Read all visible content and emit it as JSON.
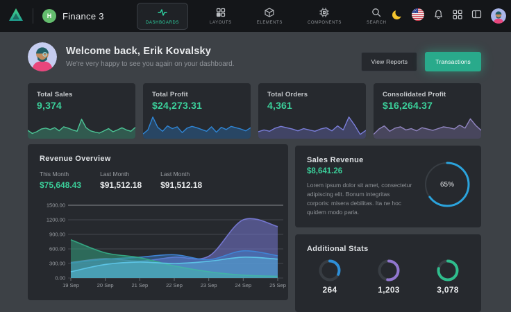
{
  "navbar": {
    "brand": "Finance 3",
    "brand_badge": "H",
    "items": [
      {
        "label": "DASHBOARDS",
        "icon": "activity-icon",
        "active": true
      },
      {
        "label": "LAYOUTS",
        "icon": "layout-grid-icon",
        "active": false
      },
      {
        "label": "ELEMENTS",
        "icon": "box-icon",
        "active": false
      },
      {
        "label": "COMPONENTS",
        "icon": "cpu-icon",
        "active": false
      },
      {
        "label": "SEARCH",
        "icon": "search-icon",
        "active": false
      }
    ],
    "right_icons": [
      "moon-icon",
      "us-flag-icon",
      "bell-icon",
      "apps-grid-icon",
      "sidebar-toggle-icon",
      "user-avatar"
    ]
  },
  "welcome": {
    "title": "Welcome back, Erik Kovalsky",
    "subtitle": "We're very happy to see you again on your dashboard.",
    "view_reports_label": "View Reports",
    "transactions_label": "Transactions"
  },
  "accent_colors": {
    "green": "#3bcf9a",
    "teal_button": "#29aa8b"
  },
  "stat_cards": [
    {
      "title": "Total Sales",
      "value": "9,374",
      "spark": {
        "color": "#4cc596",
        "values": [
          28,
          14,
          22,
          34,
          38,
          32,
          40,
          26,
          44,
          38,
          30,
          24,
          78,
          40,
          26,
          20,
          16,
          26,
          36,
          22,
          30,
          40,
          30,
          24,
          42
        ]
      }
    },
    {
      "title": "Total Profit",
      "value": "$24,273.31",
      "spark": {
        "color": "#2f86d6",
        "values": [
          12,
          30,
          88,
          42,
          24,
          48,
          36,
          44,
          18,
          38,
          46,
          40,
          32,
          24,
          44,
          20,
          42,
          32,
          46,
          40,
          34,
          26,
          40
        ]
      }
    },
    {
      "title": "Total Orders",
      "value": "4,361",
      "spark": {
        "color": "#7b7fdb",
        "values": [
          22,
          30,
          24,
          38,
          46,
          40,
          34,
          26,
          36,
          30,
          24,
          34,
          40,
          26,
          48,
          30,
          88,
          52,
          10,
          28
        ]
      }
    },
    {
      "title": "Consolidated Profit",
      "value": "$16,264.37",
      "spark": {
        "color": "#9286c2",
        "values": [
          10,
          34,
          48,
          24,
          38,
          44,
          30,
          36,
          26,
          40,
          34,
          28,
          36,
          44,
          40,
          34,
          52,
          38,
          80,
          50,
          28
        ]
      }
    }
  ],
  "revenue_overview": {
    "title": "Revenue Overview",
    "stats": [
      {
        "label": "This Month",
        "value": "$75,648.43",
        "highlight": true
      },
      {
        "label": "Last Month",
        "value": "$91,512.18",
        "highlight": false
      },
      {
        "label": "Last Month",
        "value": "$91,512.18",
        "highlight": false
      }
    ],
    "chart_data": {
      "type": "area",
      "x": [
        "19 Sep",
        "20 Sep",
        "21 Sep",
        "22 Sep",
        "23 Sep",
        "24 Sep",
        "25 Sep"
      ],
      "ylim": [
        0,
        1500
      ],
      "y_ticks": [
        "1500.00",
        "1200.00",
        "900.00",
        "600.00",
        "300.00",
        "0.00"
      ],
      "grid": true,
      "series": [
        {
          "name": "series-purple",
          "color": "#7678d4",
          "fill_opacity": 0.55,
          "values": [
            320,
            400,
            350,
            430,
            450,
            1200,
            1060
          ]
        },
        {
          "name": "series-blue",
          "color": "#3f86d8",
          "fill_opacity": 0.45,
          "values": [
            310,
            385,
            430,
            480,
            380,
            560,
            460
          ]
        },
        {
          "name": "series-green",
          "color": "#34ab85",
          "fill_opacity": 0.5,
          "values": [
            790,
            520,
            420,
            250,
            130,
            60,
            35
          ]
        },
        {
          "name": "series-cyan",
          "color": "#5ec6e8",
          "fill_opacity": 0.35,
          "values": [
            130,
            280,
            330,
            300,
            345,
            430,
            390
          ]
        }
      ]
    }
  },
  "sales_revenue": {
    "title": "Sales Revenue",
    "value": "$8,641.26",
    "description": "Lorem ipsum dolor sit amet, consectetur adipiscing elit. Bonum integritas corporis: misera debilitas. Ita ne hoc quidem modo paria.",
    "donut": {
      "percent": 65,
      "label": "65%",
      "color": "#2ba3dc",
      "width": 3,
      "track": 2
    }
  },
  "additional_stats": {
    "title": "Additional Stats",
    "items": [
      {
        "value": "264",
        "donut": {
          "percent": 32,
          "color": "#2e8fd8",
          "width": 4,
          "track": 4
        }
      },
      {
        "value": "1,203",
        "donut": {
          "percent": 52,
          "color": "#9177cf",
          "width": 4,
          "track": 4
        }
      },
      {
        "value": "3,078",
        "donut": {
          "percent": 78,
          "color": "#2fbd8d",
          "width": 4,
          "track": 4
        }
      }
    ]
  }
}
